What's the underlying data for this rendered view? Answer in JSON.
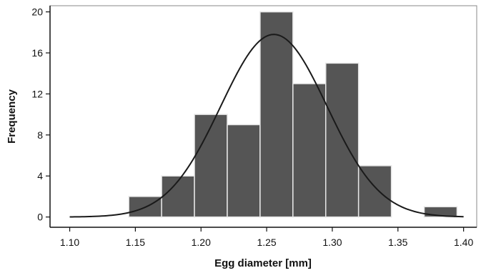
{
  "chart_data": {
    "type": "bar",
    "title": "",
    "xlabel": "Egg diameter [mm]",
    "ylabel": "Frequency",
    "xlim": [
      1.085,
      1.41
    ],
    "ylim": [
      -1,
      20.6
    ],
    "x_ticks": [
      1.1,
      1.15,
      1.2,
      1.25,
      1.3,
      1.35,
      1.4
    ],
    "x_tick_labels": [
      "1.10",
      "1.15",
      "1.20",
      "1.25",
      "1.30",
      "1.35",
      "1.40"
    ],
    "y_ticks": [
      0,
      4,
      8,
      12,
      16,
      20
    ],
    "y_tick_labels": [
      "0",
      "4",
      "8",
      "12",
      "16",
      "20"
    ],
    "bin_width": 0.025,
    "bins": [
      {
        "start": 1.145,
        "end": 1.17,
        "count": 2
      },
      {
        "start": 1.17,
        "end": 1.195,
        "count": 4
      },
      {
        "start": 1.195,
        "end": 1.22,
        "count": 10
      },
      {
        "start": 1.22,
        "end": 1.245,
        "count": 9
      },
      {
        "start": 1.245,
        "end": 1.27,
        "count": 20
      },
      {
        "start": 1.27,
        "end": 1.295,
        "count": 13
      },
      {
        "start": 1.295,
        "end": 1.32,
        "count": 15
      },
      {
        "start": 1.32,
        "end": 1.345,
        "count": 5
      },
      {
        "start": 1.345,
        "end": 1.37,
        "count": 0
      },
      {
        "start": 1.37,
        "end": 1.395,
        "count": 1
      }
    ],
    "normal_fit": {
      "mean": 1.2555,
      "sd": 0.0405,
      "peak": 17.8,
      "x_range": [
        1.1,
        1.4
      ]
    },
    "grid": false,
    "legend": "none",
    "colors": {
      "bar_fill": "#555555",
      "bar_edge": "#e6e6e6",
      "curve": "#1a1a1a",
      "axis": "#111111",
      "frame": "#888888"
    }
  }
}
